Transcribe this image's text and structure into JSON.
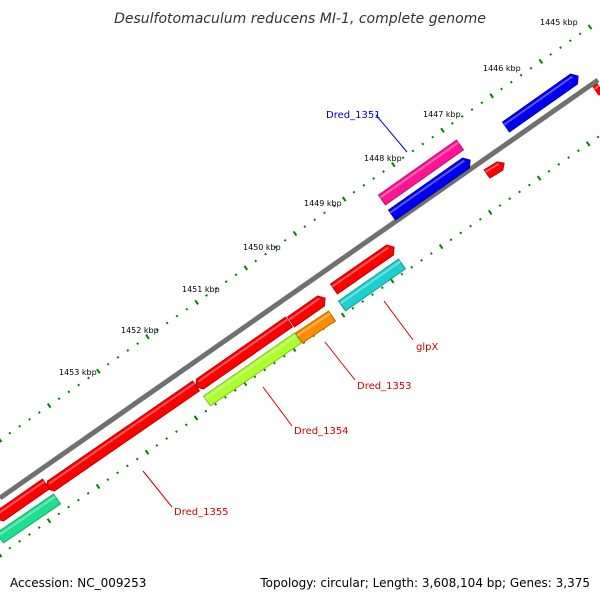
{
  "title": "Desulfotomaculum reducens MI-1, complete genome",
  "footer": {
    "accession": "Accession: NC_009253",
    "stats": "Topology: circular; Length: 3,608,104 bp; Genes: 3,375"
  },
  "ticks": [
    "1445 kbp",
    "1446 kbp",
    "1447 kbp",
    "1448 kbp",
    "1449 kbp",
    "1450 kbp",
    "1451 kbp",
    "1452 kbp",
    "1453 kbp"
  ],
  "gene_labels": [
    {
      "name": "Dred_1351",
      "color": "#0000cc"
    },
    {
      "name": "glpX",
      "color": "#cc0000"
    },
    {
      "name": "Dred_1353",
      "color": "#cc0000"
    },
    {
      "name": "Dred_1354",
      "color": "#cc0000"
    },
    {
      "name": "Dred_1355",
      "color": "#cc0000"
    }
  ],
  "colors": {
    "backbone": "#808080",
    "red": "#ff0000",
    "blue": "#0000ee",
    "magenta": "#ff1493",
    "cyan": "#1fcfcf",
    "orange": "#ff8c00",
    "lime": "#adff2f",
    "spring": "#1ddf8f",
    "tick": "#008000"
  }
}
